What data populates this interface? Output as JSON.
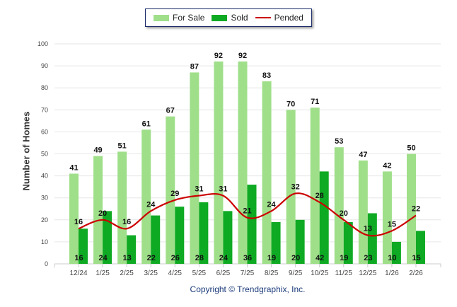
{
  "chart_data": {
    "type": "bar",
    "categories": [
      "12/24",
      "1/25",
      "2/25",
      "3/25",
      "4/25",
      "5/25",
      "6/25",
      "7/25",
      "8/25",
      "9/25",
      "10/25",
      "11/25",
      "12/25",
      "1/26",
      "2/26"
    ],
    "series": [
      {
        "name": "For Sale",
        "type": "bar",
        "color": "#a0df8a",
        "values": [
          41,
          49,
          51,
          61,
          67,
          87,
          92,
          92,
          83,
          70,
          71,
          53,
          47,
          42,
          50
        ]
      },
      {
        "name": "Sold",
        "type": "bar",
        "color": "#0faa23",
        "values": [
          16,
          24,
          13,
          22,
          26,
          28,
          24,
          36,
          19,
          20,
          42,
          19,
          23,
          10,
          15
        ]
      },
      {
        "name": "Pended",
        "type": "line",
        "color": "#cc0000",
        "values": [
          16,
          20,
          16,
          24,
          29,
          31,
          31,
          21,
          24,
          32,
          28,
          20,
          13,
          15,
          22
        ]
      }
    ],
    "ylabel": "Number of Homes",
    "xlabel": "",
    "ylim": [
      0,
      100
    ],
    "yticks": [
      0,
      10,
      20,
      30,
      40,
      50,
      60,
      70,
      80,
      90,
      100
    ],
    "grid": true,
    "legend": "top-center"
  },
  "footer": {
    "copyright": "Copyright © Trendgraphix, Inc."
  }
}
